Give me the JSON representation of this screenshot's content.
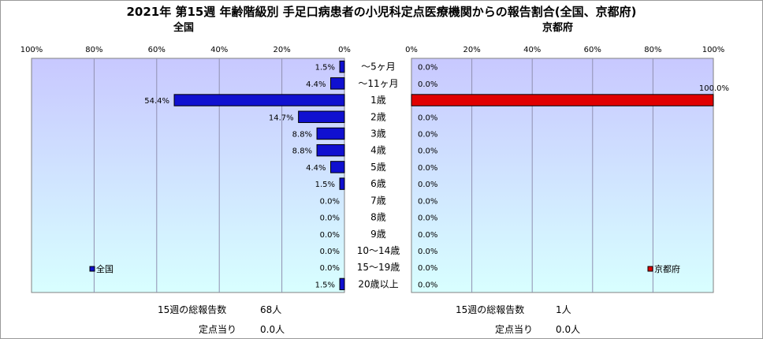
{
  "title": "2021年 第15週 年齢階級別 手足口病患者の小児科定点医療機関からの報告割合(全国、京都府)",
  "colors": {
    "national_bar": "#1010d0",
    "kyoto_bar": "#e00000",
    "plot_top": "#c8c8ff",
    "plot_bottom": "#d8ffff"
  },
  "chart_data": [
    {
      "type": "bar",
      "orientation": "horizontal-reversed",
      "title": "全国",
      "categories": [
        "～5ヶ月",
        "～11ヶ月",
        "1歳",
        "2歳",
        "3歳",
        "4歳",
        "5歳",
        "6歳",
        "7歳",
        "8歳",
        "9歳",
        "10～14歳",
        "15～19歳",
        "20歳以上"
      ],
      "series": [
        {
          "name": "全国",
          "values": [
            1.5,
            4.4,
            54.4,
            14.7,
            8.8,
            8.8,
            4.4,
            1.5,
            0.0,
            0.0,
            0.0,
            0.0,
            0.0,
            1.5
          ],
          "labels": [
            "1.5%",
            "4.4%",
            "54.4%",
            "14.7%",
            "8.8%",
            "8.8%",
            "4.4%",
            "1.5%",
            "0.0%",
            "0.0%",
            "0.0%",
            "0.0%",
            "0.0%",
            "1.5%"
          ]
        }
      ],
      "xlim": [
        0,
        100
      ],
      "ticks": [
        "100%",
        "80%",
        "60%",
        "40%",
        "20%",
        "0%"
      ],
      "legend": "bottom-left",
      "grid": true
    },
    {
      "type": "bar",
      "orientation": "horizontal",
      "title": "京都府",
      "categories": [
        "～5ヶ月",
        "～11ヶ月",
        "1歳",
        "2歳",
        "3歳",
        "4歳",
        "5歳",
        "6歳",
        "7歳",
        "8歳",
        "9歳",
        "10～14歳",
        "15～19歳",
        "20歳以上"
      ],
      "series": [
        {
          "name": "京都府",
          "values": [
            0.0,
            0.0,
            100.0,
            0.0,
            0.0,
            0.0,
            0.0,
            0.0,
            0.0,
            0.0,
            0.0,
            0.0,
            0.0,
            0.0
          ],
          "labels": [
            "0.0%",
            "0.0%",
            "100.0%",
            "0.0%",
            "0.0%",
            "0.0%",
            "0.0%",
            "0.0%",
            "0.0%",
            "0.0%",
            "0.0%",
            "0.0%",
            "0.0%",
            "0.0%"
          ]
        }
      ],
      "xlim": [
        0,
        100
      ],
      "ticks": [
        "0%",
        "20%",
        "40%",
        "60%",
        "80%",
        "100%"
      ],
      "legend": "bottom-right",
      "grid": true
    }
  ],
  "footer": {
    "national": {
      "total_label": "15週の総報告数",
      "total_value": "68人",
      "per_site_label": "定点当り",
      "per_site_value": "0.0人"
    },
    "kyoto": {
      "total_label": "15週の総報告数",
      "total_value": "1人",
      "per_site_label": "定点当り",
      "per_site_value": "0.0人"
    }
  }
}
